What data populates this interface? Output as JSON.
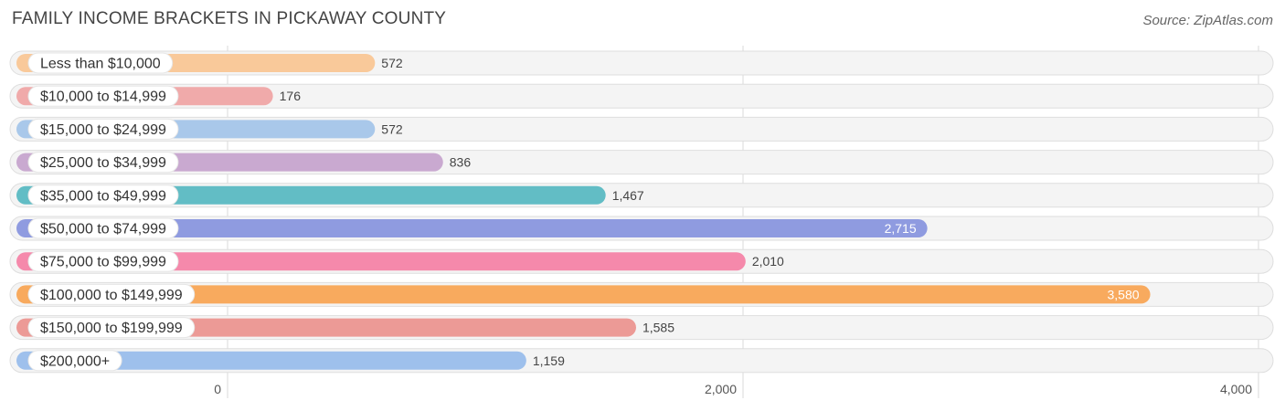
{
  "header": {
    "title": "FAMILY INCOME BRACKETS IN PICKAWAY COUNTY",
    "source": "Source: ZipAtlas.com"
  },
  "chart_data": {
    "type": "bar",
    "orientation": "horizontal",
    "title": "FAMILY INCOME BRACKETS IN PICKAWAY COUNTY",
    "xlabel": "",
    "ylabel": "",
    "xlim": [
      0,
      4000
    ],
    "ticks": [
      0,
      2000,
      4000
    ],
    "tick_labels": [
      "0",
      "2,000",
      "4,000"
    ],
    "categories": [
      "Less than $10,000",
      "$10,000 to $14,999",
      "$15,000 to $24,999",
      "$25,000 to $34,999",
      "$35,000 to $49,999",
      "$50,000 to $74,999",
      "$75,000 to $99,999",
      "$100,000 to $149,999",
      "$150,000 to $199,999",
      "$200,000+"
    ],
    "values": [
      572,
      176,
      572,
      836,
      1467,
      2715,
      2010,
      3580,
      1585,
      1159
    ],
    "value_labels": [
      "572",
      "176",
      "572",
      "836",
      "1,467",
      "2,715",
      "2,010",
      "3,580",
      "1,585",
      "1,159"
    ],
    "colors": [
      "#f9c99a",
      "#f0aaaa",
      "#a9c8ea",
      "#c9a9d0",
      "#62bdc5",
      "#8f9be0",
      "#f589ab",
      "#f8aa5e",
      "#ec9a96",
      "#9ec0ec"
    ]
  }
}
